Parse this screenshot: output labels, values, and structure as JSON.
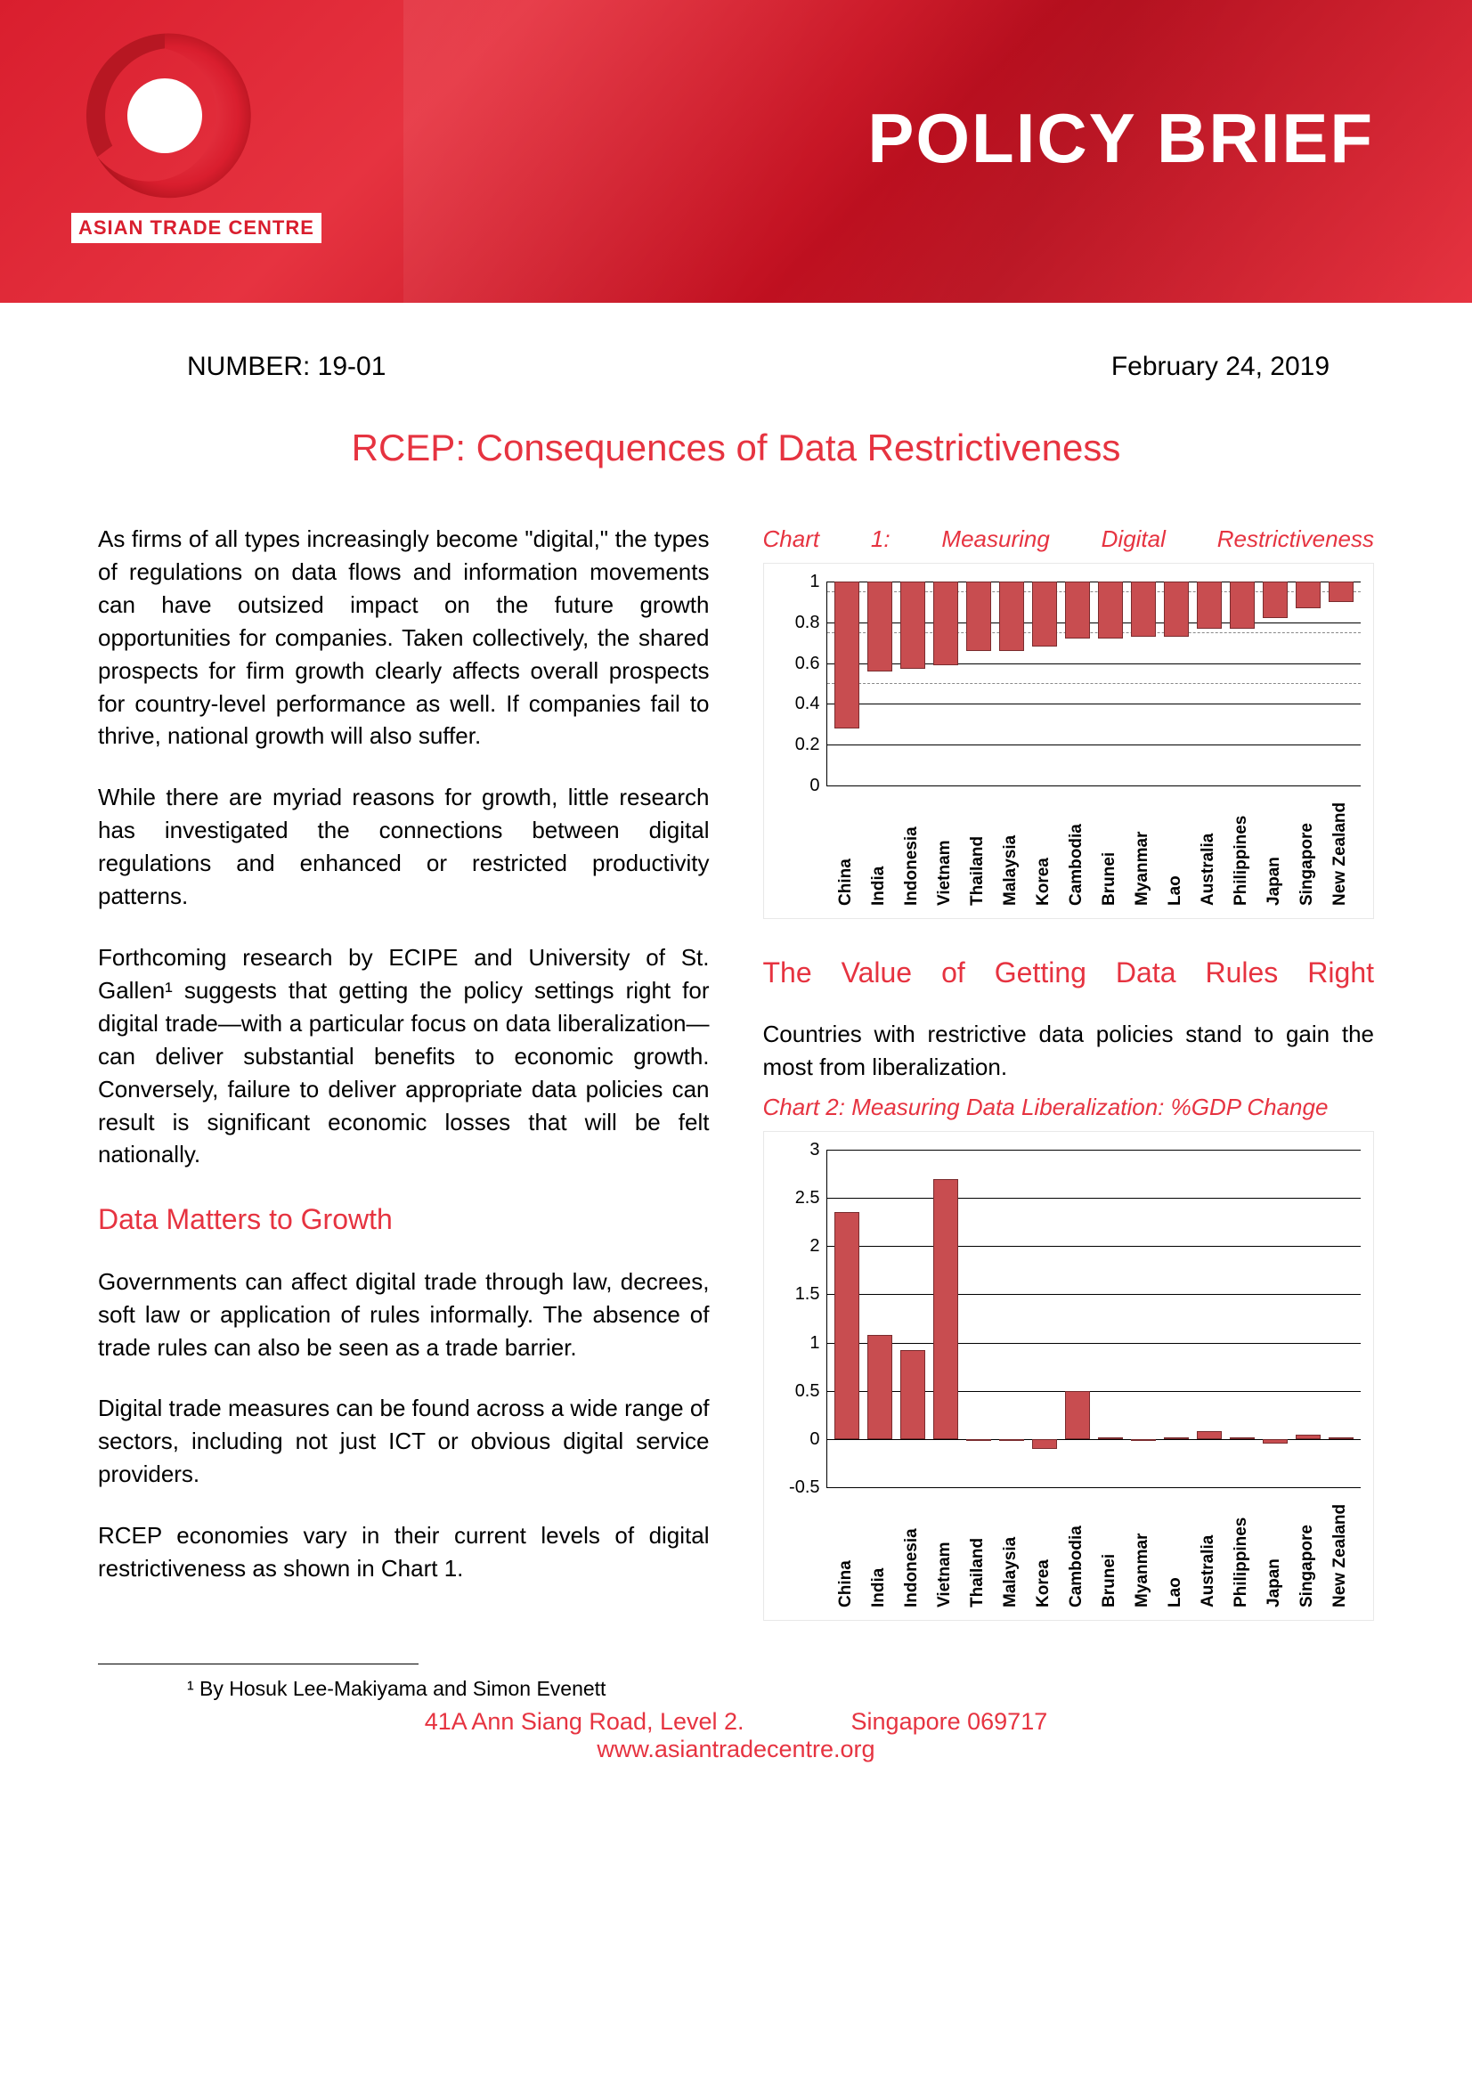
{
  "header": {
    "org_name": "ASIAN TRADE CENTRE",
    "banner_title": "POLICY BRIEF"
  },
  "meta": {
    "number_label": "NUMBER: 19-01",
    "date": "February 24, 2019"
  },
  "title": "RCEP:  Consequences of Data Restrictiveness",
  "left_col": {
    "p1": "As firms of all types increasingly become \"digital,\" the types of regulations on data flows and information movements can have outsized impact on the future growth opportunities for companies.  Taken collectively, the shared prospects for firm growth clearly affects overall prospects for country-level performance as well.  If companies fail to thrive, national growth will also suffer.",
    "p2": "While there are myriad reasons for growth, little research has investigated the connections between digital regulations and enhanced or restricted productivity patterns.",
    "p3": "Forthcoming research by ECIPE and University of St. Gallen¹ suggests that getting the policy settings right for digital trade—with a particular focus on data liberalization—can deliver substantial benefits to economic growth.  Conversely, failure to deliver appropriate data policies can result is significant economic losses that will be felt nationally.",
    "section1_title": "Data Matters to Growth",
    "p4": "Governments can affect digital trade through law, decrees, soft law or application of rules informally.  The absence of trade rules can also be seen as a trade barrier.",
    "p5": "Digital trade measures can be found across a wide range of sectors, including not just ICT or obvious digital service providers.",
    "p6": "RCEP economies vary in their current levels of digital restrictiveness as shown in Chart 1."
  },
  "right_col": {
    "section2_title": "The Value of Getting Data Rules Right",
    "p1": "Countries with restrictive data policies stand to gain the most from liberalization."
  },
  "chart1": {
    "title": "Chart 1:  Measuring Digital Restrictiveness",
    "type": "bar",
    "ymin": 0,
    "ymax": 1,
    "ytick_step": 0.2,
    "yticks": [
      "0",
      "0.2",
      "0.4",
      "0.6",
      "0.8",
      "1"
    ],
    "dashed_lines": [
      0.5,
      0.75,
      0.95
    ],
    "bar_color": "#c84d50",
    "border_color": "#7a2c2e",
    "grid_color": "#000000",
    "background_color": "#ffffff",
    "categories": [
      "China",
      "India",
      "Indonesia",
      "Vietnam",
      "Thailand",
      "Malaysia",
      "Korea",
      "Cambodia",
      "Brunei",
      "Myanmar",
      "Lao",
      "Australia",
      "Philippines",
      "Japan",
      "Singapore",
      "New Zealand"
    ],
    "values": [
      0.72,
      0.44,
      0.43,
      0.41,
      0.34,
      0.34,
      0.32,
      0.28,
      0.28,
      0.27,
      0.27,
      0.23,
      0.23,
      0.18,
      0.13,
      0.1
    ]
  },
  "chart2": {
    "title": "Chart 2: Measuring Data Liberalization: %GDP Change",
    "type": "bar",
    "ymin": -0.5,
    "ymax": 3,
    "ytick_step": 0.5,
    "yticks": [
      "-0.5",
      "0",
      "0.5",
      "1",
      "1.5",
      "2",
      "2.5",
      "3"
    ],
    "bar_color": "#c84d50",
    "border_color": "#7a2c2e",
    "grid_color": "#000000",
    "background_color": "#ffffff",
    "categories": [
      "China",
      "India",
      "Indonesia",
      "Vietnam",
      "Thailand",
      "Malaysia",
      "Korea",
      "Cambodia",
      "Brunei",
      "Myanmar",
      "Lao",
      "Australia",
      "Philippines",
      "Japan",
      "Singapore",
      "New Zealand"
    ],
    "values": [
      2.35,
      1.08,
      0.92,
      2.7,
      -0.02,
      -0.02,
      -0.1,
      0.5,
      0.02,
      -0.02,
      0.02,
      0.08,
      0.02,
      -0.05,
      0.05,
      0.02
    ]
  },
  "footnote": "¹ By Hosuk Lee-Makiyama and Simon Evenett",
  "footer": {
    "line1a": "41A Ann Siang Road, Level 2.",
    "line1b": "Singapore 069717",
    "line2": "www.asiantradecentre.org"
  },
  "colors": {
    "brand_red": "#e63340",
    "dark_red": "#d91e2e",
    "text": "#000000"
  }
}
